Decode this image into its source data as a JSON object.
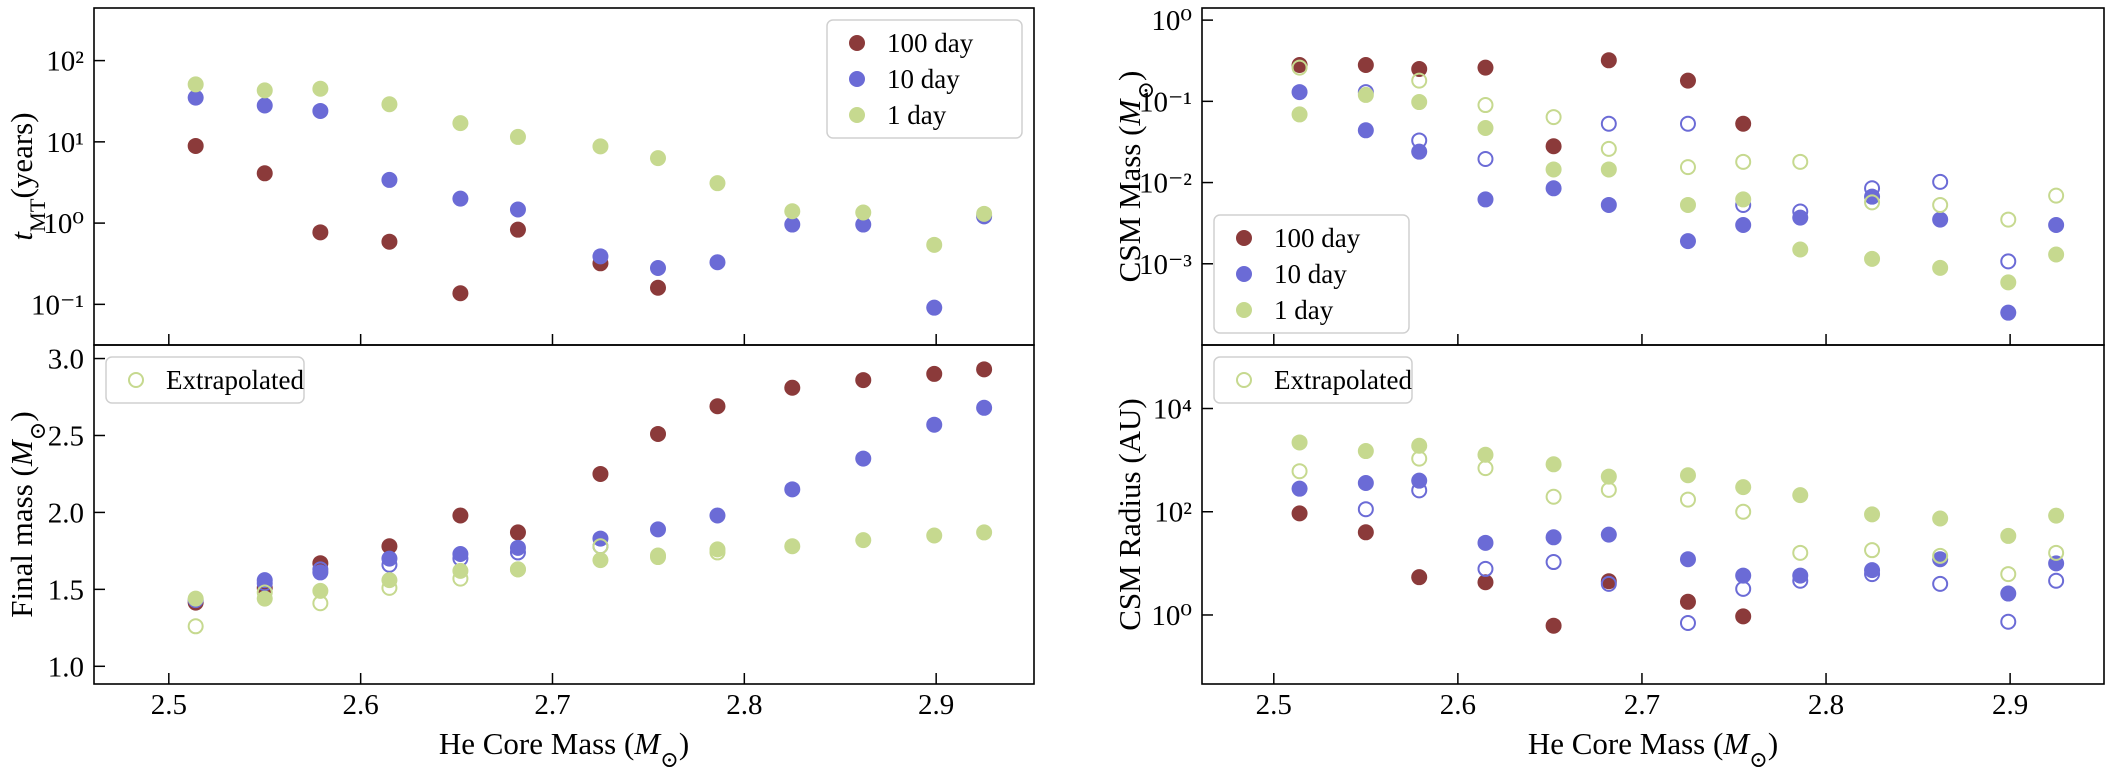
{
  "chart_data": [
    {
      "type": "scatter",
      "log": true,
      "legend": "upper right",
      "ylabel": [
        {
          "text": "t",
          "style": "italic"
        },
        {
          "text": "MT",
          "style": "sub"
        },
        {
          "text": "(years)"
        }
      ],
      "x": [
        2.514,
        2.55,
        2.579,
        2.615,
        2.652,
        2.682,
        2.725,
        2.755,
        2.786,
        2.825,
        2.862,
        2.899,
        2.925
      ],
      "xlim": [
        2.461,
        2.951
      ],
      "xticks": [
        2.5,
        2.6,
        2.7,
        2.8,
        2.9
      ],
      "xtick_labels": false,
      "ylim": [
        0.0316,
        444
      ],
      "yticks": [
        {
          "value": 0.1,
          "label": "10⁻¹"
        },
        {
          "value": 1,
          "label": "10⁰"
        },
        {
          "value": 10,
          "label": "10¹"
        },
        {
          "value": 100,
          "label": "10²"
        }
      ],
      "series": [
        {
          "name": "100 day",
          "color": "#8b3a3a",
          "values": [
            8.9,
            4.1,
            0.77,
            0.59,
            0.137,
            0.83,
            0.32,
            0.16,
            null,
            null,
            null,
            null,
            null
          ]
        },
        {
          "name": "10 day",
          "color": "#6b6bd6",
          "values": [
            35,
            28,
            24,
            3.4,
            2.0,
            1.47,
            0.39,
            0.28,
            0.33,
            0.96,
            0.96,
            0.091,
            1.21
          ]
        },
        {
          "name": "1 day",
          "color": "#c6d98f",
          "values": [
            51,
            43,
            45,
            29,
            17,
            11.5,
            8.8,
            6.3,
            3.1,
            1.4,
            1.35,
            0.54,
            1.3
          ]
        }
      ]
    },
    {
      "type": "scatter",
      "log": true,
      "legend": "lower left",
      "ylabel": [
        {
          "text": "CSM Mass ("
        },
        {
          "text": "M",
          "style": "italic"
        },
        {
          "text": "⊙",
          "style": "sub"
        },
        {
          "text": ")"
        }
      ],
      "x": [
        2.514,
        2.55,
        2.579,
        2.615,
        2.652,
        2.682,
        2.725,
        2.755,
        2.786,
        2.825,
        2.862,
        2.899,
        2.925
      ],
      "xlim": [
        2.461,
        2.951
      ],
      "xticks": [
        2.5,
        2.6,
        2.7,
        2.8,
        2.9
      ],
      "xtick_labels": false,
      "ylim": [
        0.0001,
        1.41
      ],
      "yticks": [
        {
          "value": 0.001,
          "label": "10⁻³"
        },
        {
          "value": 0.01,
          "label": "10⁻²"
        },
        {
          "value": 0.1,
          "label": "10⁻¹"
        },
        {
          "value": 1,
          "label": "10⁰"
        }
      ],
      "series": [
        {
          "name": "100 day",
          "color": "#8b3a3a",
          "values": [
            0.28,
            0.28,
            0.25,
            0.26,
            0.028,
            0.32,
            0.18,
            0.053,
            null,
            null,
            null,
            null,
            null
          ]
        },
        {
          "name": "10 day",
          "color": "#6b6bd6",
          "values": [
            0.13,
            0.044,
            0.024,
            0.0062,
            0.0085,
            0.0053,
            0.0019,
            0.003,
            0.0037,
            0.0067,
            0.0035,
            0.00025,
            0.003
          ],
          "extrapolated": [
            null,
            0.13,
            0.033,
            0.0195,
            null,
            0.053,
            0.053,
            0.0053,
            0.0044,
            0.0085,
            0.0102,
            0.00107,
            null
          ]
        },
        {
          "name": "1 day",
          "color": "#c6d98f",
          "values": [
            0.069,
            0.12,
            0.098,
            0.047,
            0.0145,
            0.0145,
            0.0053,
            0.0062,
            0.0015,
            0.00115,
            0.00089,
            0.00059,
            0.0013
          ],
          "extrapolated": [
            0.26,
            null,
            0.18,
            0.09,
            0.064,
            0.026,
            0.0155,
            0.018,
            0.018,
            0.0057,
            0.0053,
            0.0035,
            0.0069
          ]
        }
      ]
    },
    {
      "type": "scatter",
      "log": false,
      "legend": "upper left",
      "legend_entry": "Extrapolated",
      "legend_color": "#c6d98f",
      "xlabel": [
        {
          "text": "He Core Mass ("
        },
        {
          "text": "M",
          "style": "italic"
        },
        {
          "text": "⊙",
          "style": "sub"
        },
        {
          "text": ")"
        }
      ],
      "ylabel": [
        {
          "text": "Final mass ("
        },
        {
          "text": "M",
          "style": "italic"
        },
        {
          "text": "⊙",
          "style": "sub"
        },
        {
          "text": ")"
        }
      ],
      "x": [
        2.514,
        2.55,
        2.579,
        2.615,
        2.652,
        2.682,
        2.725,
        2.755,
        2.786,
        2.825,
        2.862,
        2.899,
        2.925
      ],
      "xlim": [
        2.461,
        2.951
      ],
      "xticks": [
        2.5,
        2.6,
        2.7,
        2.8,
        2.9
      ],
      "xtick_labels": true,
      "ylim": [
        0.885,
        3.088
      ],
      "yticks": [
        {
          "value": 1,
          "label": "1.0"
        },
        1.5,
        {
          "value": 2,
          "label": "2.0"
        },
        2.5,
        {
          "value": 3,
          "label": "3.0"
        }
      ],
      "series": [
        {
          "color": "#8b3a3a",
          "values": [
            1.414,
            1.51,
            1.67,
            1.78,
            1.98,
            1.87,
            2.25,
            2.51,
            2.69,
            2.81,
            2.86,
            2.9,
            2.93
          ]
        },
        {
          "color": "#6b6bd6",
          "values": [
            1.43,
            1.56,
            1.61,
            1.7,
            1.73,
            1.77,
            1.83,
            1.89,
            1.98,
            2.15,
            2.35,
            2.57,
            2.68
          ],
          "extrapolated": [
            null,
            1.54,
            1.63,
            1.66,
            1.7,
            1.74,
            1.78,
            null,
            null,
            null,
            null,
            null,
            null
          ]
        },
        {
          "color": "#c6d98f",
          "values": [
            1.44,
            1.44,
            1.49,
            1.56,
            1.62,
            1.63,
            1.69,
            1.72,
            1.76,
            1.78,
            1.82,
            1.85,
            1.87
          ],
          "extrapolated": [
            1.26,
            1.48,
            1.41,
            1.51,
            1.57,
            1.63,
            1.78,
            1.71,
            1.74,
            null,
            null,
            null,
            null
          ]
        }
      ]
    },
    {
      "type": "scatter",
      "log": true,
      "legend": "upper left",
      "legend_entry": "Extrapolated",
      "legend_color": "#c6d98f",
      "xlabel": [
        {
          "text": "He Core Mass ("
        },
        {
          "text": "M",
          "style": "italic"
        },
        {
          "text": "⊙",
          "style": "sub"
        },
        {
          "text": ")"
        }
      ],
      "ylabel": [
        {
          "text": "CSM Radius (AU)"
        }
      ],
      "x": [
        2.514,
        2.55,
        2.579,
        2.615,
        2.652,
        2.682,
        2.725,
        2.755,
        2.786,
        2.825,
        2.862,
        2.899,
        2.925
      ],
      "xlim": [
        2.461,
        2.951
      ],
      "xticks": [
        2.5,
        2.6,
        2.7,
        2.8,
        2.9
      ],
      "xtick_labels": true,
      "ylim": [
        0.046,
        170000
      ],
      "yticks": [
        {
          "value": 1,
          "label": "10⁰"
        },
        {
          "value": 100,
          "label": "10²"
        },
        {
          "value": 10000,
          "label": "10⁴"
        }
      ],
      "series": [
        {
          "color": "#8b3a3a",
          "values": [
            93,
            40,
            5.4,
            4.3,
            0.62,
            4.5,
            1.8,
            0.94,
            null,
            null,
            null,
            null,
            null
          ]
        },
        {
          "color": "#6b6bd6",
          "values": [
            280,
            360,
            400,
            25,
            32,
            36,
            12,
            5.8,
            5.8,
            7.4,
            12,
            2.6,
            10
          ],
          "extrapolated": [
            null,
            112,
            260,
            7.8,
            10.6,
            4.0,
            0.7,
            3.2,
            4.6,
            6.2,
            4.0,
            0.74,
            4.6
          ]
        },
        {
          "color": "#c6d98f",
          "values": [
            2200,
            1500,
            1900,
            1270,
            830,
            480,
            510,
            300,
            210,
            89,
            74,
            34,
            84
          ],
          "extrapolated": [
            610,
            null,
            1070,
            700,
            195,
            265,
            172,
            100,
            16,
            18,
            14,
            6.2,
            16
          ]
        }
      ]
    }
  ]
}
